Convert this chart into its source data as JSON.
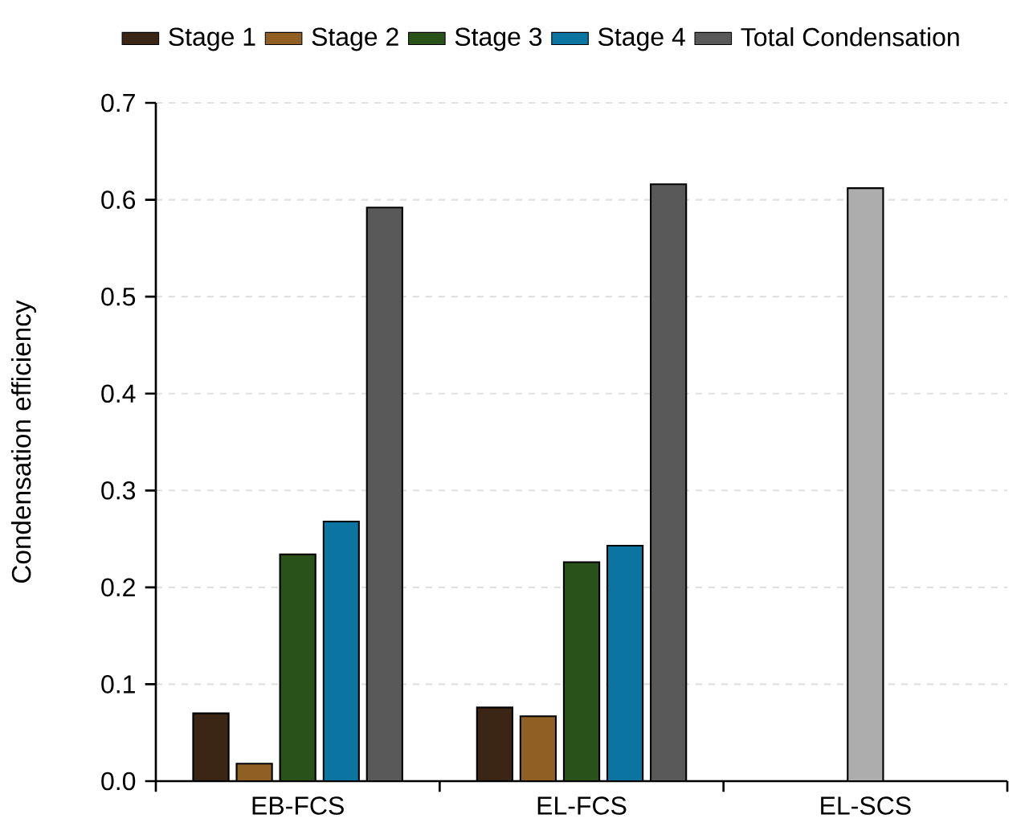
{
  "chart_data": {
    "type": "bar",
    "ylabel": "Condensation efficiency",
    "categories": [
      "EB-FCS",
      "EL-FCS",
      "EL-SCS"
    ],
    "series": [
      {
        "name": "Stage 1",
        "color": "#3b2616",
        "values": [
          0.07,
          0.076,
          null
        ]
      },
      {
        "name": "Stage 2",
        "color": "#8f5f24",
        "values": [
          0.018,
          0.067,
          null
        ]
      },
      {
        "name": "Stage 3",
        "color": "#28521a",
        "values": [
          0.234,
          0.226,
          null
        ]
      },
      {
        "name": "Stage 4",
        "color": "#0c74a0",
        "values": [
          0.268,
          0.243,
          null
        ]
      },
      {
        "name": "Total Condensation",
        "color": "#595959",
        "colors": [
          "#595959",
          "#595959",
          "#adadad"
        ],
        "values": [
          0.592,
          0.616,
          0.612
        ]
      }
    ],
    "ylim": [
      0,
      0.7
    ],
    "yticks": [
      {
        "value": 0,
        "label": "0.0"
      },
      0.1,
      0.2,
      0.3,
      0.4,
      0.5,
      0.6,
      0.7
    ],
    "grid": "y",
    "legend": "top"
  }
}
